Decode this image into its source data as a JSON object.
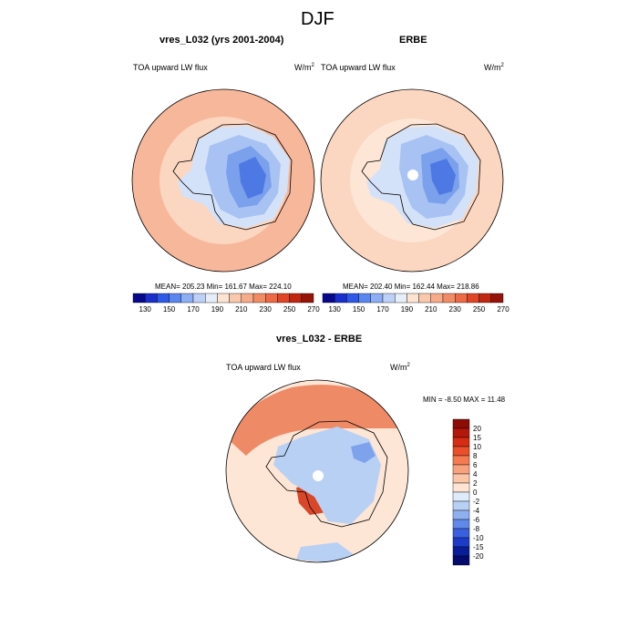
{
  "page": {
    "title": "DJF"
  },
  "panels": [
    {
      "title": "vres_L032 (yrs 2001-2004)",
      "field_label": "TOA upward LW flux",
      "units": "W/m",
      "units_sup": "2",
      "stats": "MEAN= 205.23  Min= 161.67  Max= 224.10"
    },
    {
      "title": "ERBE",
      "field_label": "TOA upward LW flux",
      "units": "W/m",
      "units_sup": "2",
      "stats": "MEAN= 202.40  Min= 162.44  Max= 218.86"
    },
    {
      "title": "vres_L032 - ERBE",
      "field_label": "TOA upward LW flux",
      "units": "W/m",
      "units_sup": "2",
      "stats": "MIN =  -8.50 MAX =  11.48"
    }
  ],
  "colorbars": {
    "horizontal": {
      "labels": [
        "130",
        "150",
        "170",
        "190",
        "210",
        "230",
        "250",
        "270"
      ],
      "colors": [
        "#08088a",
        "#1a2ecc",
        "#2d59e6",
        "#5b86f0",
        "#8daef5",
        "#bdd0f7",
        "#e6eefa",
        "#fde3d2",
        "#f9c8ad",
        "#f6ab89",
        "#f28c66",
        "#ec6a45",
        "#e04626",
        "#c12610",
        "#96130a"
      ]
    },
    "vertical": {
      "labels": [
        "20",
        "15",
        "10",
        "8",
        "6",
        "4",
        "2",
        "0",
        "-2",
        "-4",
        "-6",
        "-8",
        "-10",
        "-15",
        "-20"
      ],
      "colors": [
        "#8b0d05",
        "#b3180a",
        "#d42d14",
        "#ea4f2a",
        "#f47a4f",
        "#f8a27d",
        "#fbc6a8",
        "#fde4d3",
        "#deebfa",
        "#b9d0f5",
        "#8fb0f0",
        "#6189ea",
        "#3a60e0",
        "#1c3cc8",
        "#0a1d99",
        "#050b6e"
      ]
    }
  },
  "maps": {
    "ocean_a": "#f7b79b",
    "ocean_b": "#fbd6c1",
    "ocean_c": "#fde6d6",
    "land_1": "#d4e2f9",
    "land_2": "#a8c3f3",
    "land_3": "#7ba0ec",
    "land_4": "#4e79e4",
    "diff_bg": "#fde6d6",
    "diff_red": "#ef8a66",
    "diff_dark": "#d9472a",
    "diff_blue": "#b9d0f5",
    "diff_blue2": "#7ea2ec"
  }
}
